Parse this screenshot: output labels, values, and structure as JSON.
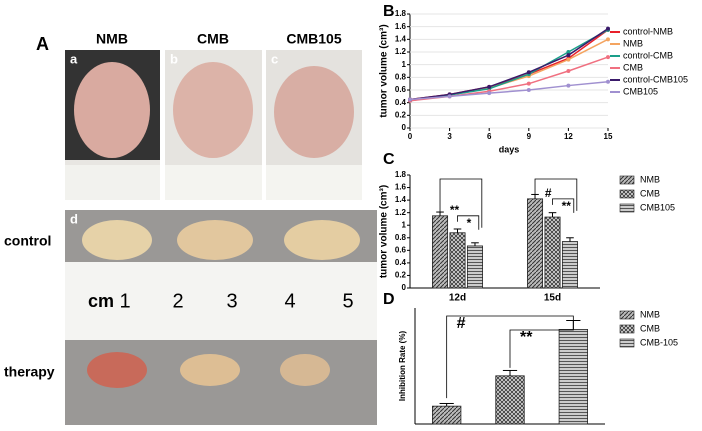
{
  "panel_labels": [
    "A",
    "B",
    "C",
    "D"
  ],
  "photos": {
    "columns": [
      "NMB",
      "CMB",
      "CMB105"
    ],
    "sublabels": [
      "a",
      "b",
      "c",
      "d"
    ],
    "rows": [
      "control",
      "therapy"
    ],
    "ruler": [
      "cm",
      "1",
      "2",
      "3",
      "4",
      "5"
    ]
  },
  "chart_data": [
    {
      "type": "line",
      "xlabel": "days",
      "ylabel": "tumor volume (cm³)",
      "x": [
        0,
        3,
        6,
        9,
        12,
        15
      ],
      "xlim": [
        0,
        15
      ],
      "xticks": [
        0,
        3,
        6,
        9,
        12,
        15
      ],
      "ylim": [
        0,
        1.8
      ],
      "yticks": [
        0,
        0.2,
        0.4,
        0.6,
        0.8,
        1.0,
        1.2,
        1.4,
        1.6,
        1.8
      ],
      "grid": true,
      "series": [
        {
          "name": "control-NMB",
          "color": "#e8202a",
          "values": [
            0.45,
            0.53,
            0.65,
            0.85,
            1.1,
            1.55
          ]
        },
        {
          "name": "NMB",
          "color": "#f4a460",
          "values": [
            0.45,
            0.52,
            0.63,
            0.82,
            1.08,
            1.4
          ]
        },
        {
          "name": "control-CMB",
          "color": "#1a9f8a",
          "values": [
            0.43,
            0.52,
            0.62,
            0.85,
            1.2,
            1.55
          ]
        },
        {
          "name": "CMB",
          "color": "#f07080",
          "values": [
            0.43,
            0.5,
            0.58,
            0.7,
            0.9,
            1.12
          ]
        },
        {
          "name": "control-CMB105",
          "color": "#3a1a6a",
          "values": [
            0.45,
            0.53,
            0.65,
            0.88,
            1.15,
            1.57
          ]
        },
        {
          "name": "CMB105",
          "color": "#a090d0",
          "values": [
            0.45,
            0.5,
            0.55,
            0.6,
            0.67,
            0.73
          ]
        }
      ]
    },
    {
      "type": "bar",
      "ylabel": "tumor volume (cm³)",
      "categories": [
        "12d",
        "15d"
      ],
      "ylim": [
        0,
        1.8
      ],
      "yticks": [
        0,
        0.2,
        0.4,
        0.6,
        0.8,
        1.0,
        1.2,
        1.4,
        1.6,
        1.8
      ],
      "annotations": [
        "**",
        "*",
        "#",
        "**"
      ],
      "series": [
        {
          "name": "NMB",
          "color": "#888888",
          "pattern": "diagonal",
          "values": [
            1.15,
            1.42
          ],
          "errors": [
            0.06,
            0.07
          ]
        },
        {
          "name": "CMB",
          "color": "#888888",
          "pattern": "crosshatch",
          "values": [
            0.88,
            1.13
          ],
          "errors": [
            0.06,
            0.07
          ]
        },
        {
          "name": "CMB105",
          "color": "#888888",
          "pattern": "horizontal",
          "values": [
            0.67,
            0.74
          ],
          "errors": [
            0.05,
            0.06
          ]
        }
      ]
    },
    {
      "type": "bar",
      "ylabel": "Inhibition Rate (%)",
      "categories": [
        null
      ],
      "ylim": [
        0,
        65
      ],
      "annotations": [
        "#",
        "**"
      ],
      "series": [
        {
          "name": "NMB",
          "color": "#888888",
          "pattern": "diagonal",
          "values": [
            10
          ],
          "errors": [
            1.5
          ]
        },
        {
          "name": "CMB",
          "color": "#888888",
          "pattern": "crosshatch",
          "values": [
            27
          ],
          "errors": [
            3
          ]
        },
        {
          "name": "CMB-105",
          "color": "#888888",
          "pattern": "horizontal",
          "values": [
            53
          ],
          "errors": [
            5
          ]
        }
      ]
    }
  ]
}
